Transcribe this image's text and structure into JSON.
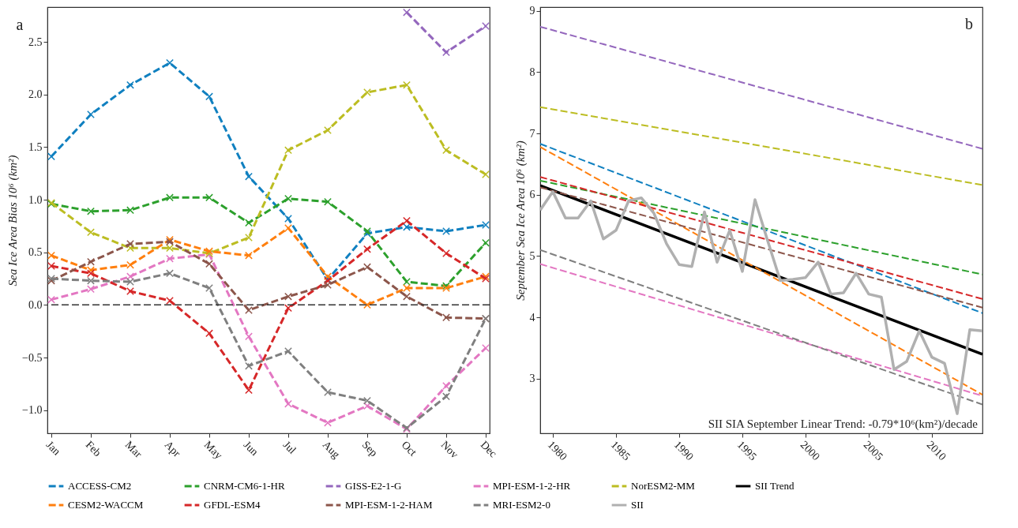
{
  "chart_data": [
    {
      "type": "line",
      "title": "a",
      "ylabel": "Sea Ice Area Bias 10⁶ (km²)",
      "categories": [
        "Jan",
        "Feb",
        "Mar",
        "Apr",
        "May",
        "Jun",
        "Jul",
        "Aug",
        "Sep",
        "Oct",
        "Nov",
        "Dec"
      ],
      "series": [
        {
          "name": "ACCESS-CM2",
          "color": "#1080c0",
          "values": [
            1.41,
            1.81,
            2.09,
            2.3,
            1.98,
            1.22,
            0.82,
            0.24,
            0.68,
            0.74,
            0.7,
            0.76
          ]
        },
        {
          "name": "CNRM-CM6-1-HR",
          "color": "#2ca02c",
          "values": [
            0.96,
            0.89,
            0.9,
            1.02,
            1.02,
            0.78,
            1.01,
            0.98,
            0.7,
            0.22,
            0.18,
            0.59
          ]
        },
        {
          "name": "GISS-E2-1-G",
          "color": "#9467bd",
          "values": [
            null,
            null,
            null,
            null,
            null,
            null,
            null,
            null,
            null,
            2.78,
            2.4,
            2.65
          ]
        },
        {
          "name": "MPI-ESM-1-2-HR",
          "color": "#e377c2",
          "values": [
            0.05,
            0.15,
            0.27,
            0.44,
            0.48,
            -0.3,
            -0.94,
            -1.12,
            -0.96,
            -1.18,
            -0.77,
            -0.41
          ]
        },
        {
          "name": "NorESM2-MM",
          "color": "#bcbd22",
          "values": [
            0.97,
            0.69,
            0.54,
            0.54,
            0.49,
            0.64,
            1.47,
            1.66,
            2.02,
            2.09,
            1.47,
            1.24
          ]
        },
        {
          "name": "CESM2-WACCM",
          "color": "#ff7f0e",
          "values": [
            0.47,
            0.33,
            0.38,
            0.62,
            0.51,
            0.47,
            0.73,
            0.27,
            0.0,
            0.16,
            0.16,
            0.27
          ]
        },
        {
          "name": "GFDL-ESM4",
          "color": "#d62728",
          "values": [
            0.37,
            0.3,
            0.13,
            0.04,
            -0.27,
            -0.81,
            -0.03,
            0.23,
            0.53,
            0.8,
            0.49,
            0.25
          ]
        },
        {
          "name": "MPI-ESM-1-2-HAM",
          "color": "#8c564b",
          "values": [
            0.23,
            0.41,
            0.58,
            0.6,
            0.39,
            -0.05,
            0.08,
            0.19,
            0.36,
            0.08,
            -0.12,
            -0.13
          ]
        },
        {
          "name": "MRI-ESM2-0",
          "color": "#7f7f7f",
          "values": [
            0.25,
            0.23,
            0.22,
            0.3,
            0.16,
            -0.58,
            -0.44,
            -0.83,
            -0.91,
            -1.17,
            -0.87,
            -0.13
          ]
        }
      ],
      "ylim": [
        -1.22,
        2.83
      ],
      "yticks": [
        {
          "value": -1,
          "label": "−1.0"
        },
        {
          "value": -0.5,
          "label": "−0.5"
        },
        {
          "value": 0,
          "label": "0.0"
        },
        {
          "value": 0.5,
          "label": "0.5"
        },
        {
          "value": 1,
          "label": "1.0"
        },
        {
          "value": 1.5,
          "label": "1.5"
        },
        {
          "value": 2,
          "label": "2.0"
        },
        {
          "value": 2.5,
          "label": "2.5"
        }
      ],
      "ref_lines": [
        {
          "axis": "y",
          "value": 0,
          "color": "#333333",
          "line_style": "dashed"
        }
      ],
      "marker": "cross",
      "line_style": "dashed",
      "legend": "bottom"
    },
    {
      "type": "line",
      "title": "b",
      "ylabel": "September Sea Ice Area 10⁶ (km²)",
      "series": [
        {
          "name": "ACCESS-CM2",
          "color": "#1080c0",
          "x": [
            1979,
            2014
          ],
          "values": [
            6.83,
            4.07
          ]
        },
        {
          "name": "CNRM-CM6-1-HR",
          "color": "#2ca02c",
          "x": [
            1979,
            2014
          ],
          "values": [
            6.23,
            4.7
          ]
        },
        {
          "name": "GISS-E2-1-G",
          "color": "#9467bd",
          "x": [
            1979,
            2014
          ],
          "values": [
            8.74,
            6.75
          ]
        },
        {
          "name": "MPI-ESM-1-2-HR",
          "color": "#e377c2",
          "x": [
            1979,
            2014
          ],
          "values": [
            4.87,
            2.72
          ]
        },
        {
          "name": "NorESM2-MM",
          "color": "#bcbd22",
          "x": [
            1979,
            2014
          ],
          "values": [
            7.43,
            6.16
          ]
        },
        {
          "name": "SII Trend",
          "color": "#000000",
          "line_style": "solid",
          "x": [
            1979,
            2014
          ],
          "values": [
            6.15,
            3.4
          ]
        },
        {
          "name": "CESM2-WACCM",
          "color": "#ff7f0e",
          "x": [
            1979,
            2014
          ],
          "values": [
            6.78,
            2.74
          ]
        },
        {
          "name": "GFDL-ESM4",
          "color": "#d62728",
          "x": [
            1979,
            2014
          ],
          "values": [
            6.29,
            4.3
          ]
        },
        {
          "name": "MPI-ESM-1-2-HAM",
          "color": "#8c564b",
          "x": [
            1979,
            2014
          ],
          "values": [
            6.12,
            4.16
          ]
        },
        {
          "name": "MRI-ESM2-0",
          "color": "#7f7f7f",
          "x": [
            1979,
            2014
          ],
          "values": [
            5.1,
            2.58
          ]
        },
        {
          "name": "SII",
          "color": "#b0b0b0",
          "line_style": "solid",
          "x": [
            1979,
            1980,
            1981,
            1982,
            1983,
            1984,
            1985,
            1986,
            1987,
            1988,
            1989,
            1990,
            1991,
            1992,
            1993,
            1994,
            1995,
            1996,
            1997,
            1998,
            1999,
            2000,
            2001,
            2002,
            2003,
            2004,
            2005,
            2006,
            2007,
            2008,
            2009,
            2010,
            2011,
            2012,
            2013,
            2014
          ],
          "values": [
            5.75,
            6.05,
            5.62,
            5.62,
            5.9,
            5.28,
            5.42,
            5.9,
            5.95,
            5.7,
            5.2,
            4.86,
            4.83,
            5.72,
            4.9,
            5.42,
            4.75,
            5.92,
            5.25,
            4.6,
            4.62,
            4.65,
            4.9,
            4.38,
            4.4,
            4.72,
            4.38,
            4.33,
            3.15,
            3.28,
            3.78,
            3.35,
            3.25,
            2.43,
            3.8,
            3.78
          ]
        }
      ],
      "xlim": [
        1979,
        2014
      ],
      "xticks": [
        1980,
        1985,
        1990,
        1995,
        2000,
        2005,
        2010
      ],
      "ylim": [
        2.11,
        9.06
      ],
      "yticks": [
        3,
        4,
        5,
        6,
        7,
        8,
        9
      ],
      "annotations": [
        "SII SIA September Linear Trend: -0.79*10⁶(km²)/decade"
      ],
      "line_style": "dashed",
      "legend": "bottom"
    }
  ]
}
